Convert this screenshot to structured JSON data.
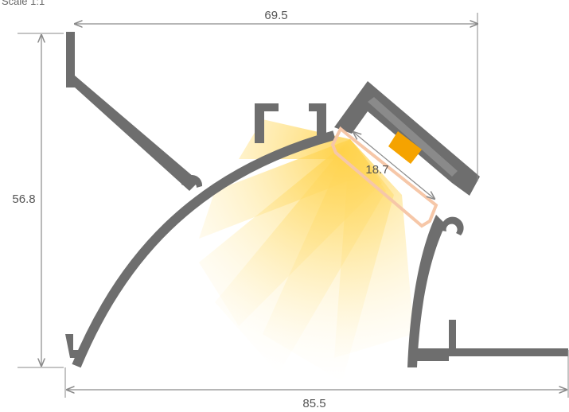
{
  "scale_label": "Scale 1:1",
  "dimensions": {
    "width_top": "69.5",
    "height_left": "56.8",
    "diffuser_width": "18.7",
    "width_bottom": "85.5"
  },
  "colors": {
    "profile": "#6e6e6e",
    "dimension_line": "#8a8a8a",
    "light_glow": "#ffd24a",
    "led_strip": "#f5a300",
    "diffuser": "#f6c7a8"
  }
}
